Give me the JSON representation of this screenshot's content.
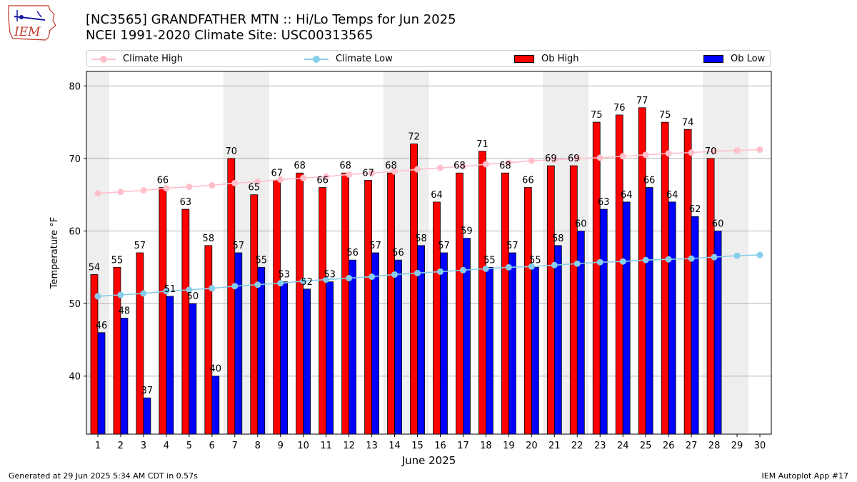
{
  "header": {
    "title_line1": "[NC3565] GRANDFATHER MTN :: Hi/Lo Temps for Jun 2025",
    "title_line2": "NCEI 1991-2020 Climate Site: USC00313565",
    "logo_text": "IEM"
  },
  "legend": {
    "placement": "top, spanning full width",
    "items": [
      {
        "label": "Climate High",
        "kind": "line",
        "color": "#ffc0cb"
      },
      {
        "label": "Climate Low",
        "kind": "line",
        "color": "#87ceeb"
      },
      {
        "label": "Ob High",
        "kind": "bar",
        "color": "#ff0000"
      },
      {
        "label": "Ob Low",
        "kind": "bar",
        "color": "#0000ff"
      }
    ]
  },
  "footer": {
    "left": "Generated at 29 Jun 2025 5:34 AM CDT in 0.57s",
    "right": "IEM Autoplot App #17"
  },
  "chart_data": {
    "type": "bar",
    "title": "[NC3565] GRANDFATHER MTN :: Hi/Lo Temps for Jun 2025",
    "subtitle": "NCEI 1991-2020 Climate Site: USC00313565",
    "xlabel": "June 2025",
    "ylabel": "Temperature °F",
    "x": [
      1,
      2,
      3,
      4,
      5,
      6,
      7,
      8,
      9,
      10,
      11,
      12,
      13,
      14,
      15,
      16,
      17,
      18,
      19,
      20,
      21,
      22,
      23,
      24,
      25,
      26,
      27,
      28,
      29,
      30
    ],
    "xlim": [
      0.5,
      30.5
    ],
    "ylim": [
      32,
      82
    ],
    "yticks": [
      40,
      50,
      60,
      70,
      80
    ],
    "grid": "horizontal",
    "weekend_shading": [
      [
        1
      ],
      [
        7,
        8
      ],
      [
        14,
        15
      ],
      [
        21,
        22
      ],
      [
        28,
        29
      ]
    ],
    "series": [
      {
        "name": "Ob High",
        "kind": "bar",
        "color": "#ff0000",
        "values": [
          54,
          55,
          57,
          66,
          63,
          58,
          70,
          65,
          67,
          68,
          66,
          68,
          67,
          68,
          72,
          64,
          68,
          71,
          68,
          66,
          69,
          69,
          75,
          76,
          77,
          75,
          74,
          70,
          null,
          null
        ]
      },
      {
        "name": "Ob Low",
        "kind": "bar",
        "color": "#0000ff",
        "values": [
          46,
          48,
          37,
          51,
          50,
          40,
          57,
          55,
          53,
          52,
          53,
          56,
          57,
          56,
          58,
          57,
          59,
          55,
          57,
          55,
          58,
          60,
          63,
          64,
          66,
          64,
          62,
          60,
          null,
          null
        ]
      },
      {
        "name": "Climate High",
        "kind": "line",
        "color": "#ffc0cb",
        "values": [
          65.2,
          65.4,
          65.6,
          65.9,
          66.1,
          66.3,
          66.6,
          66.8,
          67.1,
          67.3,
          67.5,
          67.8,
          68.0,
          68.2,
          68.5,
          68.7,
          68.9,
          69.2,
          69.4,
          69.7,
          69.8,
          70.0,
          70.1,
          70.3,
          70.5,
          70.7,
          70.8,
          71.0,
          71.1,
          71.2
        ]
      },
      {
        "name": "Climate Low",
        "kind": "line",
        "color": "#87ceeb",
        "values": [
          51.0,
          51.2,
          51.4,
          51.7,
          51.9,
          52.1,
          52.4,
          52.6,
          52.8,
          53.1,
          53.3,
          53.5,
          53.7,
          54.0,
          54.2,
          54.4,
          54.6,
          54.8,
          55.0,
          55.1,
          55.3,
          55.5,
          55.7,
          55.8,
          56.0,
          56.1,
          56.2,
          56.4,
          56.6,
          56.7
        ]
      }
    ]
  }
}
